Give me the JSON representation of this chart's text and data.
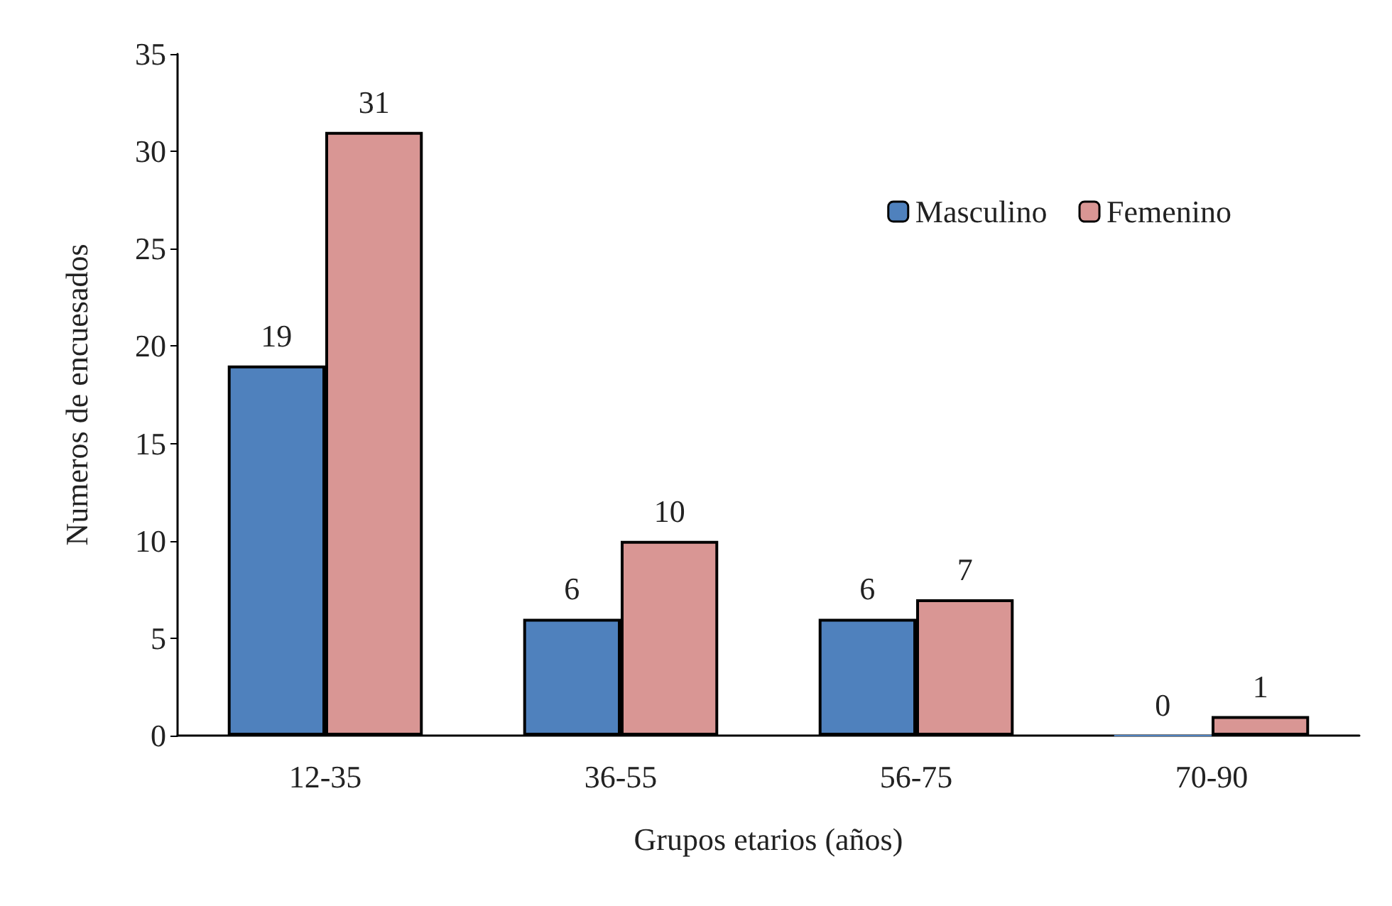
{
  "chart_data": {
    "type": "bar",
    "xlabel": "Grupos etarios (años)",
    "ylabel": "Numeros de encuesados",
    "categories": [
      "12-35",
      "36-55",
      "56-75",
      "70-90"
    ],
    "series": [
      {
        "name": "Masculino",
        "color": "#4f81bd",
        "values": [
          19,
          6,
          6,
          0
        ]
      },
      {
        "name": "Femenino",
        "color": "#d99694",
        "values": [
          31,
          10,
          7,
          1
        ]
      }
    ],
    "ylim": [
      0,
      35
    ],
    "yticks": [
      0,
      5,
      10,
      15,
      20,
      25,
      30,
      35
    ],
    "grid": false,
    "legend": "top right",
    "data_labels": true
  }
}
